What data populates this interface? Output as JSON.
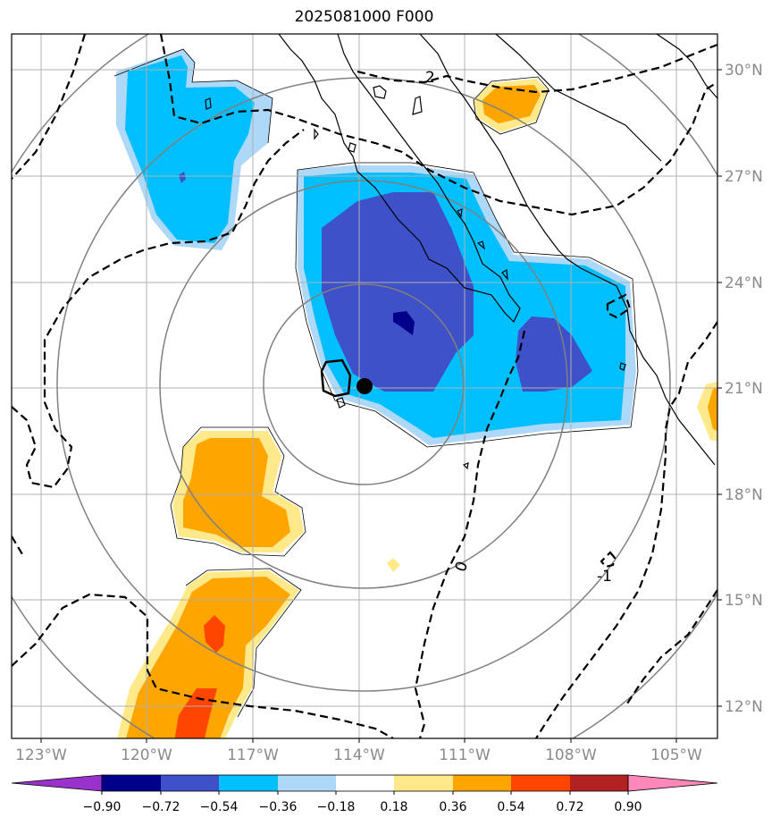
{
  "title": "2025081000 F000",
  "lat_labels": [
    "30°N",
    "27°N",
    "24°N",
    "21°N",
    "18°N",
    "15°N",
    "12°N"
  ],
  "lon_labels": [
    "123°W",
    "120°W",
    "117°W",
    "114°W",
    "111°W",
    "108°W",
    "105°W"
  ],
  "contour_labels": [
    "2",
    "0",
    "-1"
  ],
  "colorbar": {
    "ticks": [
      "−0.90",
      "−0.72",
      "−0.54",
      "−0.36",
      "−0.18",
      "0.18",
      "0.36",
      "0.54",
      "0.72",
      "0.90"
    ],
    "colors": [
      "#9932cc",
      "#00008b",
      "#3f51c8",
      "#00bfff",
      "#add8f7",
      "#ffffff",
      "#ffe98a",
      "#ffa500",
      "#ff4500",
      "#b22222",
      "#ff88b8"
    ]
  },
  "colors": {
    "grid": "#b0b0b0",
    "range_rings": "#808080",
    "coastline": "#000000",
    "storm_center": "#000000"
  }
}
